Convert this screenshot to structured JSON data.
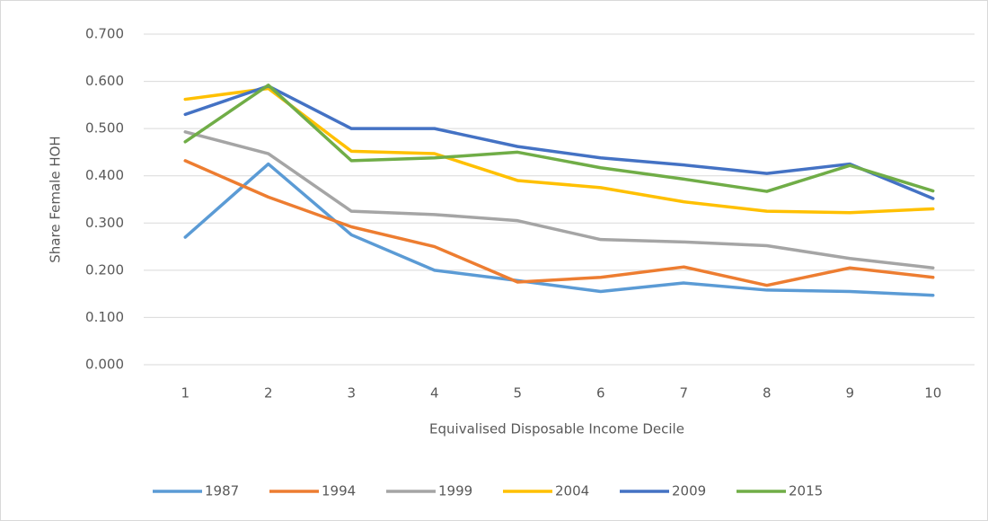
{
  "chart_data": {
    "type": "line",
    "categories": [
      "1",
      "2",
      "3",
      "4",
      "5",
      "6",
      "7",
      "8",
      "9",
      "10"
    ],
    "x_label": "Equivalised Disposable Income Decile",
    "y_label": "Share Female HOH",
    "ylim": [
      0,
      0.7
    ],
    "yticks": [
      {
        "value": 0,
        "label": "0.000"
      },
      {
        "value": 0.1,
        "label": "0.100"
      },
      {
        "value": 0.2,
        "label": "0.200"
      },
      {
        "value": 0.3,
        "label": "0.300"
      },
      {
        "value": 0.4,
        "label": "0.400"
      },
      {
        "value": 0.5,
        "label": "0.500"
      },
      {
        "value": 0.6,
        "label": "0.600"
      },
      {
        "value": 0.7,
        "label": "0.700"
      }
    ],
    "grid": true,
    "legend": "bottom",
    "series": [
      {
        "name": "1987",
        "color": "#5b9bd5",
        "values": [
          0.27,
          0.425,
          0.275,
          0.2,
          0.178,
          0.155,
          0.173,
          0.158,
          0.155,
          0.147
        ]
      },
      {
        "name": "1994",
        "color": "#ed7d31",
        "values": [
          0.432,
          0.355,
          0.292,
          0.25,
          0.175,
          0.185,
          0.207,
          0.168,
          0.205,
          0.185
        ]
      },
      {
        "name": "1999",
        "color": "#a5a5a5",
        "values": [
          0.493,
          0.447,
          0.325,
          0.318,
          0.305,
          0.265,
          0.26,
          0.252,
          0.225,
          0.205
        ]
      },
      {
        "name": "2004",
        "color": "#ffc000",
        "values": [
          0.562,
          0.585,
          0.452,
          0.447,
          0.39,
          0.375,
          0.345,
          0.325,
          0.322,
          0.33
        ]
      },
      {
        "name": "2009",
        "color": "#4472c4",
        "values": [
          0.53,
          0.59,
          0.5,
          0.5,
          0.462,
          0.438,
          0.423,
          0.405,
          0.425,
          0.352
        ]
      },
      {
        "name": "2015",
        "color": "#70ad47",
        "values": [
          0.472,
          0.592,
          0.432,
          0.438,
          0.45,
          0.417,
          0.393,
          0.367,
          0.422,
          0.368
        ]
      }
    ]
  }
}
